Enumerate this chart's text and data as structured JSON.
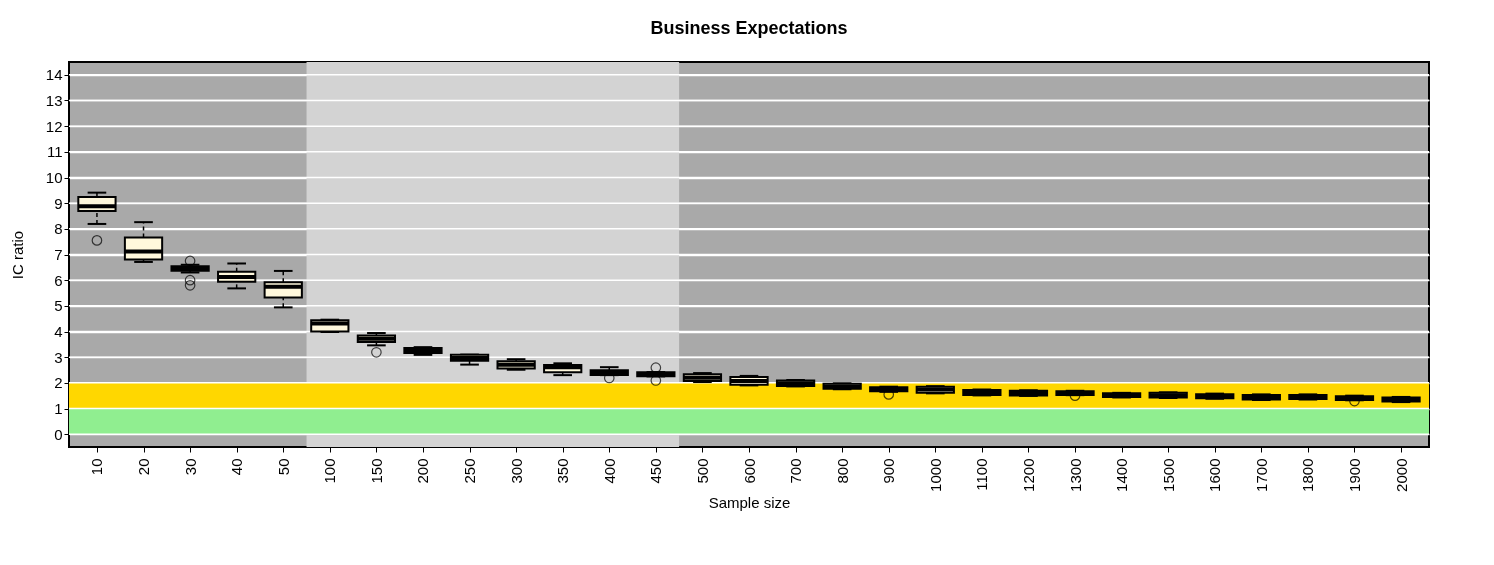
{
  "chart_data": {
    "type": "box",
    "title": "Business Expectations",
    "xlabel": "Sample size",
    "ylabel": "IC ratio",
    "categories": [
      "10",
      "20",
      "30",
      "40",
      "50",
      "100",
      "150",
      "200",
      "250",
      "300",
      "350",
      "400",
      "450",
      "500",
      "600",
      "700",
      "800",
      "900",
      "1000",
      "1100",
      "1200",
      "1300",
      "1400",
      "1500",
      "1600",
      "1700",
      "1800",
      "1900",
      "2000"
    ],
    "ylim": [
      -0.5,
      14.5
    ],
    "yticks": [
      0,
      1,
      2,
      3,
      4,
      5,
      6,
      7,
      8,
      9,
      10,
      11,
      12,
      13,
      14
    ],
    "grid": "y",
    "bands": [
      {
        "axis": "x",
        "from": "100",
        "to": "450",
        "color": "#d3d3d3"
      },
      {
        "axis": "y",
        "from": 1,
        "to": 2,
        "color": "#ffd700"
      },
      {
        "axis": "y",
        "from": 0,
        "to": 1,
        "color": "#90ee90"
      }
    ],
    "series": [
      {
        "type": "box",
        "color": "#fff8dc",
        "boxes": [
          {
            "low": 8.19,
            "q1": 8.69,
            "median": 8.88,
            "q3": 9.24,
            "high": 9.41,
            "outliers": [
              7.55
            ]
          },
          {
            "low": 6.71,
            "q1": 6.81,
            "median": 7.12,
            "q3": 7.66,
            "high": 8.26
          },
          {
            "low": 6.3,
            "q1": 6.37,
            "median": 6.45,
            "q3": 6.54,
            "high": 6.6,
            "outliers": [
              6.75,
              6.0,
              5.8
            ]
          },
          {
            "low": 5.68,
            "q1": 5.94,
            "median": 6.12,
            "q3": 6.33,
            "high": 6.65
          },
          {
            "low": 4.94,
            "q1": 5.32,
            "median": 5.74,
            "q3": 5.92,
            "high": 6.36
          },
          {
            "low": 3.98,
            "q1": 4.0,
            "median": 4.31,
            "q3": 4.44,
            "high": 4.46
          },
          {
            "low": 3.46,
            "q1": 3.59,
            "median": 3.72,
            "q3": 3.84,
            "high": 3.94,
            "outliers": [
              3.19
            ]
          },
          {
            "low": 3.09,
            "q1": 3.16,
            "median": 3.25,
            "q3": 3.36,
            "high": 3.39
          },
          {
            "low": 2.71,
            "q1": 2.86,
            "median": 2.97,
            "q3": 3.09,
            "high": 3.1
          },
          {
            "low": 2.51,
            "q1": 2.56,
            "median": 2.7,
            "q3": 2.84,
            "high": 2.92
          },
          {
            "low": 2.3,
            "q1": 2.41,
            "median": 2.61,
            "q3": 2.69,
            "high": 2.76
          },
          {
            "low": 2.3,
            "q1": 2.31,
            "median": 2.4,
            "q3": 2.49,
            "high": 2.61,
            "outliers": [
              2.19
            ]
          },
          {
            "low": 2.25,
            "q1": 2.26,
            "median": 2.33,
            "q3": 2.41,
            "high": 2.42,
            "outliers": [
              2.59,
              2.09
            ]
          },
          {
            "low": 2.03,
            "q1": 2.07,
            "median": 2.2,
            "q3": 2.33,
            "high": 2.38
          },
          {
            "low": 1.9,
            "q1": 1.93,
            "median": 2.07,
            "q3": 2.23,
            "high": 2.27
          },
          {
            "low": 1.86,
            "q1": 1.88,
            "median": 1.98,
            "q3": 2.09,
            "high": 2.11
          },
          {
            "low": 1.75,
            "q1": 1.77,
            "median": 1.86,
            "q3": 1.96,
            "high": 1.98
          },
          {
            "low": 1.65,
            "q1": 1.67,
            "median": 1.76,
            "q3": 1.83,
            "high": 1.85,
            "outliers": [
              1.55
            ]
          },
          {
            "low": 1.59,
            "q1": 1.61,
            "median": 1.74,
            "q3": 1.85,
            "high": 1.87
          },
          {
            "low": 1.51,
            "q1": 1.53,
            "median": 1.64,
            "q3": 1.72,
            "high": 1.74
          },
          {
            "low": 1.49,
            "q1": 1.51,
            "median": 1.6,
            "q3": 1.69,
            "high": 1.71
          },
          {
            "low": 1.52,
            "q1": 1.53,
            "median": 1.6,
            "q3": 1.67,
            "high": 1.69,
            "outliers": [
              1.5
            ]
          },
          {
            "low": 1.43,
            "q1": 1.45,
            "median": 1.52,
            "q3": 1.59,
            "high": 1.61
          },
          {
            "low": 1.41,
            "q1": 1.43,
            "median": 1.52,
            "q3": 1.61,
            "high": 1.63
          },
          {
            "low": 1.38,
            "q1": 1.4,
            "median": 1.48,
            "q3": 1.56,
            "high": 1.58
          },
          {
            "low": 1.33,
            "q1": 1.35,
            "median": 1.45,
            "q3": 1.53,
            "high": 1.55
          },
          {
            "low": 1.35,
            "q1": 1.37,
            "median": 1.44,
            "q3": 1.53,
            "high": 1.55
          },
          {
            "low": 1.32,
            "q1": 1.33,
            "median": 1.4,
            "q3": 1.48,
            "high": 1.5,
            "outliers": [
              1.29
            ]
          },
          {
            "low": 1.25,
            "q1": 1.27,
            "median": 1.36,
            "q3": 1.43,
            "high": 1.45
          }
        ]
      }
    ]
  }
}
